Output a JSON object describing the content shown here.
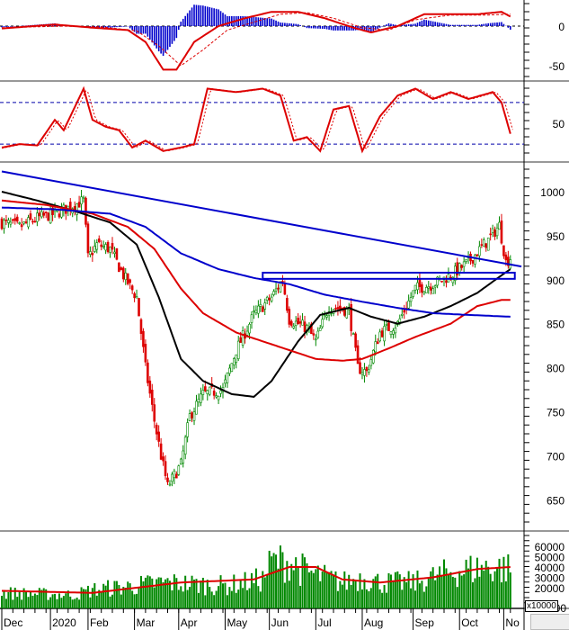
{
  "chart_data": [
    {
      "panel": "macd",
      "type": "line",
      "yticks": [
        0,
        -50
      ],
      "series": [
        {
          "name": "MACD",
          "color": "#dd0000",
          "points": [
            [
              0,
              -3
            ],
            [
              24,
              2
            ],
            [
              41,
              -2
            ],
            [
              57,
              -5
            ],
            [
              65,
              -20
            ],
            [
              73,
              -55
            ],
            [
              79,
              -55
            ],
            [
              87,
              -20
            ],
            [
              98,
              0
            ],
            [
              110,
              10
            ],
            [
              122,
              18
            ],
            [
              134,
              18
            ],
            [
              146,
              10
            ],
            [
              159,
              -2
            ],
            [
              167,
              -8
            ],
            [
              179,
              0
            ],
            [
              191,
              15
            ],
            [
              203,
              15
            ],
            [
              215,
              15
            ],
            [
              226,
              18
            ],
            [
              230,
              12
            ]
          ]
        },
        {
          "name": "Signal",
          "color": "#dd0000",
          "dashed": true,
          "points": [
            [
              0,
              -2
            ],
            [
              28,
              0
            ],
            [
              45,
              -1
            ],
            [
              61,
              -6
            ],
            [
              71,
              -25
            ],
            [
              81,
              -50
            ],
            [
              91,
              -30
            ],
            [
              102,
              -5
            ],
            [
              114,
              5
            ],
            [
              126,
              15
            ],
            [
              138,
              17
            ],
            [
              150,
              10
            ],
            [
              163,
              -2
            ],
            [
              175,
              -5
            ],
            [
              187,
              8
            ],
            [
              203,
              14
            ],
            [
              220,
              14
            ],
            [
              230,
              15
            ]
          ]
        },
        {
          "name": "Histogram",
          "color": "#0000cc",
          "type": "bar",
          "derived": "MACD-Signal"
        }
      ]
    },
    {
      "panel": "stochastic",
      "type": "line",
      "yticks": [
        50
      ],
      "levels": [
        80,
        20
      ],
      "series": [
        {
          "name": "%K",
          "color": "#dd0000",
          "points": [
            [
              0,
              15
            ],
            [
              8,
              20
            ],
            [
              16,
              18
            ],
            [
              24,
              55
            ],
            [
              28,
              40
            ],
            [
              37,
              100
            ],
            [
              41,
              55
            ],
            [
              47,
              45
            ],
            [
              53,
              40
            ],
            [
              59,
              15
            ],
            [
              65,
              25
            ],
            [
              73,
              10
            ],
            [
              81,
              15
            ],
            [
              87,
              20
            ],
            [
              93,
              100
            ],
            [
              106,
              95
            ],
            [
              118,
              100
            ],
            [
              126,
              90
            ],
            [
              132,
              25
            ],
            [
              138,
              30
            ],
            [
              144,
              10
            ],
            [
              150,
              70
            ],
            [
              157,
              75
            ],
            [
              163,
              10
            ],
            [
              171,
              60
            ],
            [
              179,
              90
            ],
            [
              187,
              100
            ],
            [
              195,
              85
            ],
            [
              203,
              95
            ],
            [
              211,
              85
            ],
            [
              222,
              95
            ],
            [
              226,
              80
            ],
            [
              230,
              35
            ]
          ]
        }
      ]
    },
    {
      "panel": "price",
      "type": "candlestick",
      "yticks": [
        1000,
        950,
        900,
        850,
        800,
        750,
        700,
        650
      ],
      "ylim": [
        620,
        1035
      ],
      "close_keypoints": [
        [
          0,
          965
        ],
        [
          8,
          960
        ],
        [
          16,
          970
        ],
        [
          24,
          975
        ],
        [
          33,
          985
        ],
        [
          37,
          990
        ],
        [
          39,
          925
        ],
        [
          43,
          940
        ],
        [
          49,
          935
        ],
        [
          55,
          905
        ],
        [
          61,
          880
        ],
        [
          65,
          800
        ],
        [
          69,
          740
        ],
        [
          72,
          700
        ],
        [
          75,
          665
        ],
        [
          81,
          690
        ],
        [
          85,
          745
        ],
        [
          91,
          770
        ],
        [
          100,
          775
        ],
        [
          106,
          820
        ],
        [
          114,
          860
        ],
        [
          122,
          880
        ],
        [
          127,
          900
        ],
        [
          130,
          855
        ],
        [
          138,
          845
        ],
        [
          142,
          830
        ],
        [
          148,
          870
        ],
        [
          157,
          865
        ],
        [
          161,
          800
        ],
        [
          165,
          795
        ],
        [
          171,
          840
        ],
        [
          179,
          850
        ],
        [
          187,
          890
        ],
        [
          195,
          895
        ],
        [
          203,
          905
        ],
        [
          211,
          920
        ],
        [
          220,
          945
        ],
        [
          225,
          962
        ],
        [
          228,
          920
        ],
        [
          230,
          925
        ]
      ],
      "moving_averages": [
        {
          "name": "MA black",
          "color": "#000000",
          "points": [
            [
              0,
              1000
            ],
            [
              16,
              990
            ],
            [
              33,
              978
            ],
            [
              49,
              965
            ],
            [
              61,
              940
            ],
            [
              71,
              880
            ],
            [
              81,
              810
            ],
            [
              91,
              785
            ],
            [
              104,
              770
            ],
            [
              114,
              767
            ],
            [
              122,
              785
            ],
            [
              134,
              830
            ],
            [
              144,
              860
            ],
            [
              157,
              868
            ],
            [
              167,
              858
            ],
            [
              179,
              850
            ],
            [
              191,
              858
            ],
            [
              203,
              870
            ],
            [
              215,
              885
            ],
            [
              226,
              905
            ],
            [
              230,
              912
            ]
          ]
        },
        {
          "name": "MA red",
          "color": "#dd0000",
          "points": [
            [
              0,
              990
            ],
            [
              20,
              985
            ],
            [
              41,
              975
            ],
            [
              57,
              960
            ],
            [
              69,
              935
            ],
            [
              81,
              890
            ],
            [
              91,
              862
            ],
            [
              106,
              840
            ],
            [
              118,
              830
            ],
            [
              130,
              820
            ],
            [
              142,
              810
            ],
            [
              154,
              808
            ],
            [
              163,
              810
            ],
            [
              175,
              822
            ],
            [
              187,
              835
            ],
            [
              203,
              850
            ],
            [
              215,
              870
            ],
            [
              226,
              877
            ],
            [
              230,
              877
            ]
          ]
        },
        {
          "name": "MA blue",
          "color": "#0000cc",
          "points": [
            [
              0,
              982
            ],
            [
              24,
              980
            ],
            [
              49,
              975
            ],
            [
              65,
              960
            ],
            [
              81,
              930
            ],
            [
              98,
              912
            ],
            [
              114,
              902
            ],
            [
              130,
              895
            ],
            [
              146,
              883
            ],
            [
              163,
              875
            ],
            [
              179,
              868
            ],
            [
              195,
              862
            ],
            [
              211,
              860
            ],
            [
              230,
              858
            ]
          ]
        }
      ],
      "trendline": {
        "color": "#0000cc",
        "from": [
          0,
          1023
        ],
        "to": [
          235,
          915
        ]
      },
      "resistance_zone": {
        "color": "#0000cc",
        "t": [
          118,
          232
        ],
        "price": [
          901,
          908
        ]
      }
    },
    {
      "panel": "volume",
      "type": "bar",
      "yticks": [
        60000,
        50000,
        40000,
        30000,
        20000
      ],
      "unit": "x10000",
      "level_keypoints": [
        [
          0,
          15000
        ],
        [
          33,
          13000
        ],
        [
          41,
          18000
        ],
        [
          61,
          22000
        ],
        [
          73,
          25000
        ],
        [
          102,
          22000
        ],
        [
          118,
          28000
        ],
        [
          122,
          45000
        ],
        [
          130,
          45000
        ],
        [
          138,
          35000
        ],
        [
          154,
          25000
        ],
        [
          163,
          30000
        ],
        [
          171,
          25000
        ],
        [
          187,
          25000
        ],
        [
          203,
          35000
        ],
        [
          220,
          40000
        ],
        [
          230,
          38000
        ]
      ],
      "ma": {
        "color": "#dd0000",
        "points": [
          [
            0,
            17000
          ],
          [
            41,
            15000
          ],
          [
            61,
            20000
          ],
          [
            81,
            25000
          ],
          [
            114,
            28000
          ],
          [
            130,
            40000
          ],
          [
            142,
            40000
          ],
          [
            154,
            28000
          ],
          [
            171,
            25000
          ],
          [
            195,
            30000
          ],
          [
            215,
            38000
          ],
          [
            230,
            40000
          ]
        ]
      }
    }
  ],
  "x_axis": {
    "labels": [
      {
        "text": "Dec",
        "t": 0
      },
      {
        "text": "2020",
        "t": 22
      },
      {
        "text": "Feb",
        "t": 39
      },
      {
        "text": "Mar",
        "t": 60
      },
      {
        "text": "Apr",
        "t": 80
      },
      {
        "text": "May",
        "t": 101
      },
      {
        "text": "Jun",
        "t": 121
      },
      {
        "text": "Jul",
        "t": 142
      },
      {
        "text": "Aug",
        "t": 163
      },
      {
        "text": "Sep",
        "t": 186
      },
      {
        "text": "Oct",
        "t": 207
      },
      {
        "text": "No",
        "t": 227
      }
    ]
  },
  "volume_unit": "x10000",
  "volume_tick_last": "00",
  "colors": {
    "up": "#008800",
    "down": "#dd0000",
    "axis": "#000000"
  }
}
